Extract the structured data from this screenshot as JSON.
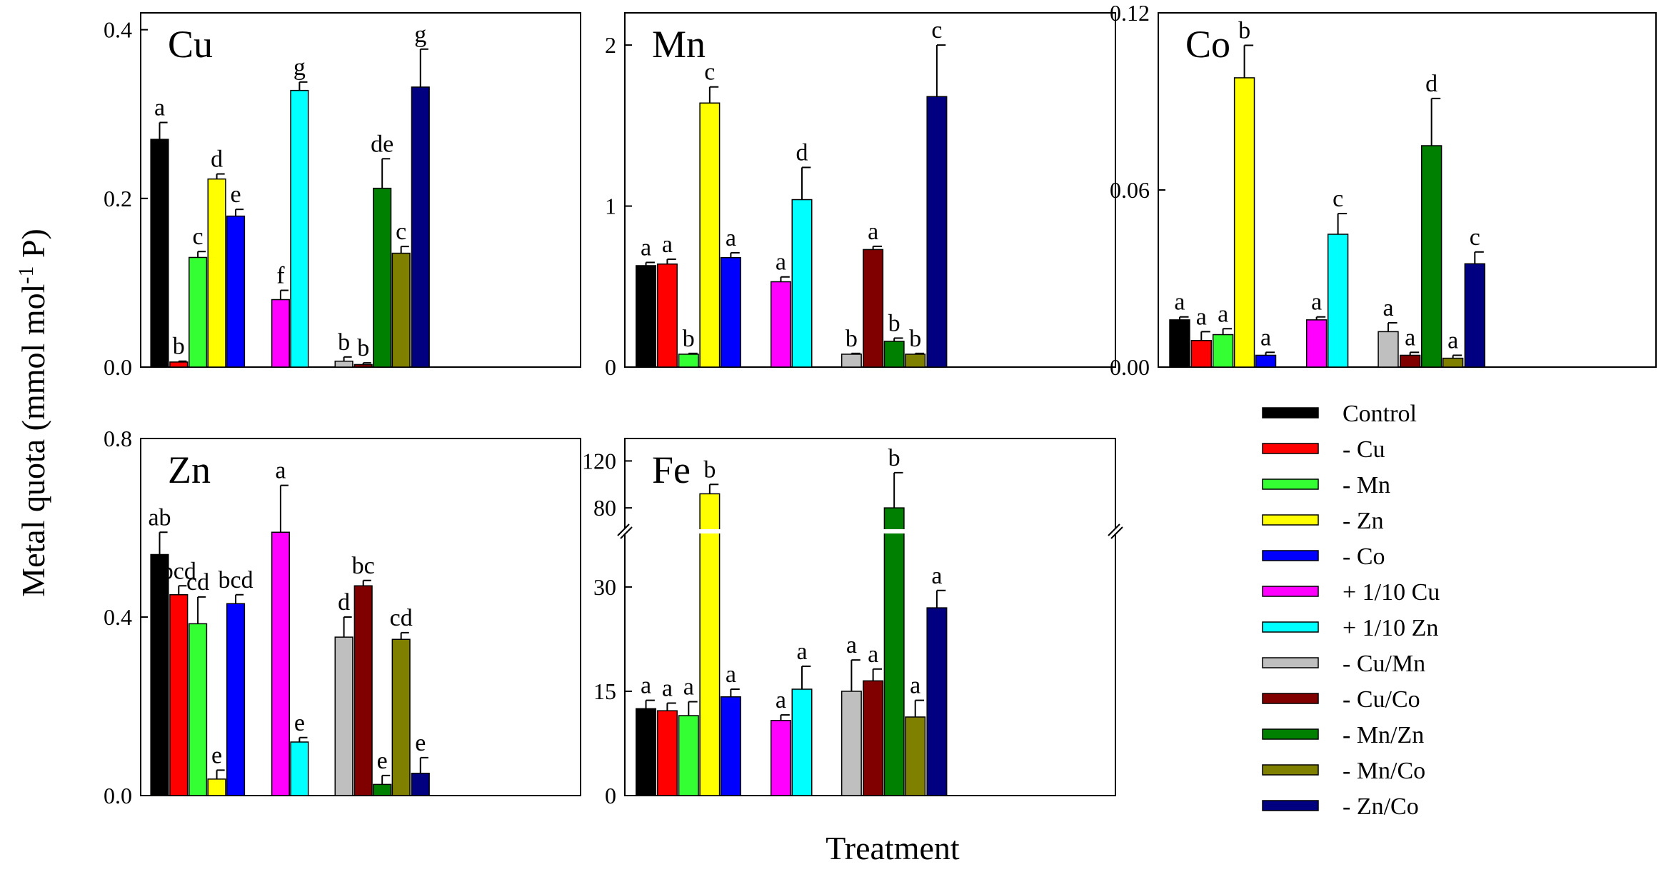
{
  "figure": {
    "ylabel_main": "Metal quota (mmol mol",
    "ylabel_sup": "-1",
    "ylabel_end": " P)",
    "xlabel": "Treatment"
  },
  "legend": {
    "items": [
      {
        "label": "Control",
        "color": "#000000"
      },
      {
        "label": "- Cu",
        "color": "#ff0000"
      },
      {
        "label": "- Mn",
        "color": "#33ff33"
      },
      {
        "label": "- Zn",
        "color": "#ffff00"
      },
      {
        "label": "- Co",
        "color": "#0000ff"
      },
      {
        "label": "+ 1/10 Cu",
        "color": "#ff00ff"
      },
      {
        "label": "+ 1/10 Zn",
        "color": "#00ffff"
      },
      {
        "label": "- Cu/Mn",
        "color": "#bfbfbf"
      },
      {
        "label": "- Cu/Co",
        "color": "#800000"
      },
      {
        "label": "- Mn/Zn",
        "color": "#008000"
      },
      {
        "label": "- Mn/Co",
        "color": "#808000"
      },
      {
        "label": "- Zn/Co",
        "color": "#000080"
      }
    ]
  },
  "chart_data": [
    {
      "type": "bar",
      "title": "Cu",
      "ylim": [
        0,
        0.42
      ],
      "yticks": [
        0.0,
        0.2,
        0.4
      ],
      "tick_labels": [
        "0.0",
        "0.2",
        "0.4"
      ],
      "categories": [
        "Control",
        "- Cu",
        "- Mn",
        "- Zn",
        "- Co",
        "+ 1/10 Cu",
        "+ 1/10 Zn",
        "- Cu/Mn",
        "- Cu/Co",
        "- Mn/Zn",
        "- Mn/Co",
        "- Zn/Co"
      ],
      "values": [
        0.27,
        0.006,
        0.13,
        0.223,
        0.179,
        0.08,
        0.328,
        0.007,
        0.003,
        0.212,
        0.135,
        0.332
      ],
      "errors": [
        0.02,
        0.001,
        0.007,
        0.006,
        0.008,
        0.011,
        0.01,
        0.005,
        0.002,
        0.035,
        0.008,
        0.045
      ],
      "letters": [
        "a",
        "b",
        "c",
        "d",
        "e",
        "f",
        "g",
        "b",
        "b",
        "de",
        "c",
        "g"
      ]
    },
    {
      "type": "bar",
      "title": "Mn",
      "ylim": [
        0,
        2.2
      ],
      "yticks": [
        0,
        1,
        2
      ],
      "tick_labels": [
        "0",
        "1",
        "2"
      ],
      "categories": [
        "Control",
        "- Cu",
        "- Mn",
        "- Zn",
        "- Co",
        "+ 1/10 Cu",
        "+ 1/10 Zn",
        "- Cu/Mn",
        "- Cu/Co",
        "- Mn/Zn",
        "- Mn/Co",
        "- Zn/Co"
      ],
      "values": [
        0.63,
        0.64,
        0.08,
        1.64,
        0.68,
        0.53,
        1.04,
        0.08,
        0.73,
        0.16,
        0.08,
        1.68
      ],
      "errors": [
        0.02,
        0.03,
        0.005,
        0.1,
        0.03,
        0.03,
        0.2,
        0.005,
        0.02,
        0.02,
        0.005,
        0.32
      ],
      "letters": [
        "a",
        "a",
        "b",
        "c",
        "a",
        "a",
        "d",
        "b",
        "a",
        "b",
        "b",
        "c"
      ]
    },
    {
      "type": "bar",
      "title": "Co",
      "ylim": [
        0,
        0.12
      ],
      "yticks": [
        0.0,
        0.06,
        0.12
      ],
      "tick_labels": [
        "0.00",
        "0.06",
        "0.12"
      ],
      "categories": [
        "Control",
        "- Cu",
        "- Mn",
        "- Zn",
        "- Co",
        "+ 1/10 Cu",
        "+ 1/10 Zn",
        "- Cu/Mn",
        "- Cu/Co",
        "- Mn/Zn",
        "- Mn/Co",
        "- Zn/Co"
      ],
      "values": [
        0.016,
        0.009,
        0.011,
        0.098,
        0.004,
        0.016,
        0.045,
        0.012,
        0.004,
        0.075,
        0.003,
        0.035
      ],
      "errors": [
        0.001,
        0.003,
        0.002,
        0.011,
        0.001,
        0.001,
        0.007,
        0.003,
        0.001,
        0.016,
        0.001,
        0.004
      ],
      "letters": [
        "a",
        "a",
        "a",
        "b",
        "a",
        "a",
        "c",
        "a",
        "a",
        "d",
        "a",
        "c"
      ]
    },
    {
      "type": "bar",
      "title": "Zn",
      "ylim": [
        0,
        0.8
      ],
      "yticks": [
        0.0,
        0.4,
        0.8
      ],
      "tick_labels": [
        "0.0",
        "0.4",
        "0.8"
      ],
      "categories": [
        "Control",
        "- Cu",
        "- Mn",
        "- Zn",
        "- Co",
        "+ 1/10 Cu",
        "+ 1/10 Zn",
        "- Cu/Mn",
        "- Cu/Co",
        "- Mn/Zn",
        "- Mn/Co",
        "- Zn/Co"
      ],
      "values": [
        0.54,
        0.45,
        0.385,
        0.037,
        0.43,
        0.59,
        0.12,
        0.355,
        0.47,
        0.025,
        0.35,
        0.05
      ],
      "errors": [
        0.05,
        0.02,
        0.06,
        0.02,
        0.02,
        0.105,
        0.01,
        0.045,
        0.012,
        0.02,
        0.015,
        0.035
      ],
      "letters": [
        "ab",
        "bcd",
        "cd",
        "e",
        "bcd",
        "a",
        "e",
        "d",
        "bc",
        "e",
        "cd",
        "e"
      ]
    },
    {
      "type": "bar",
      "title": "Fe",
      "broken_axis": true,
      "lower_range": [
        0,
        38
      ],
      "upper_range": [
        60,
        130
      ],
      "yticks": [
        0,
        15,
        30,
        80,
        120
      ],
      "tick_labels": [
        "0",
        "15",
        "30",
        "80",
        "120"
      ],
      "categories": [
        "Control",
        "- Cu",
        "- Mn",
        "- Zn",
        "- Co",
        "+ 1/10 Cu",
        "+ 1/10 Zn",
        "- Cu/Mn",
        "- Cu/Co",
        "- Mn/Zn",
        "- Mn/Co",
        "- Zn/Co"
      ],
      "values": [
        12.5,
        12.2,
        11.5,
        92,
        14.2,
        10.8,
        15.3,
        15,
        16.5,
        80,
        11.3,
        27
      ],
      "errors": [
        1.2,
        1.1,
        2.0,
        8,
        1.1,
        0.8,
        3.3,
        4.5,
        1.7,
        30,
        2.4,
        2.5
      ],
      "letters": [
        "a",
        "a",
        "a",
        "b",
        "a",
        "a",
        "a",
        "a",
        "a",
        "b",
        "a",
        "a"
      ]
    }
  ]
}
